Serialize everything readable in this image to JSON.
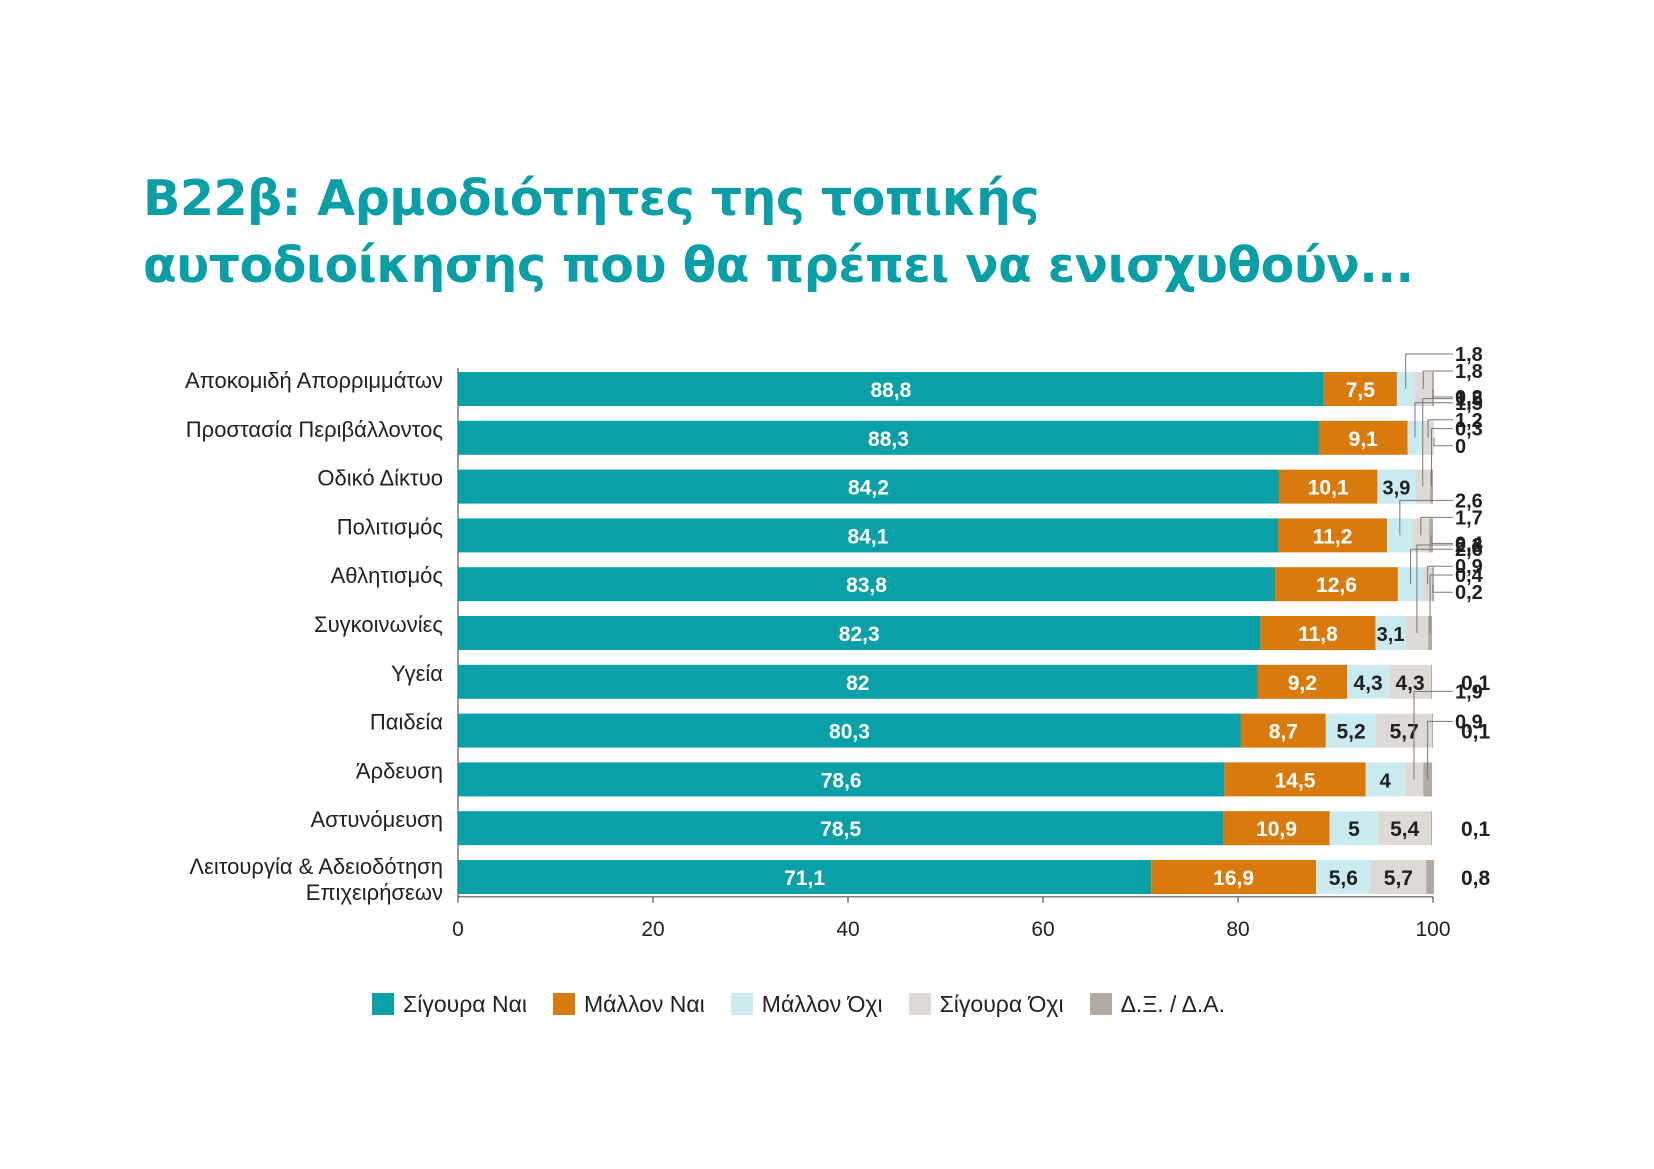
{
  "title": {
    "line1": "B22β: Αρμοδιότητες της τοπικής",
    "line2": "αυτοδιοίκησης που θα πρέπει να ενισχυθούν..."
  },
  "colors": {
    "accent_title": "#0a9ea6",
    "series": [
      "#0aa0a8",
      "#d97a0c",
      "#c9eaee",
      "#ddd9d5",
      "#b2aaa2"
    ]
  },
  "chart_data": {
    "type": "bar",
    "orientation": "horizontal",
    "stacked": true,
    "title": "B22β: Αρμοδιότητες της τοπικής αυτοδιοίκησης που θα πρέπει να ενισχυθούν...",
    "xlim": [
      0,
      100
    ],
    "xticks": [
      "0",
      "20",
      "40",
      "60",
      "80",
      "100"
    ],
    "grid": false,
    "legend_position": "bottom",
    "categories": [
      "Αποκομιδή Απορριμμάτων",
      "Προστασία Περιβάλλοντος",
      "Οδικό Δίκτυο",
      "Πολιτισμός",
      "Αθλητισμός",
      "Συγκοινωνίες",
      "Υγεία",
      "Παιδεία",
      "Άρδευση",
      "Αστυνόμευση",
      "Λειτουργία & Αδειοδότηση Επιχειρήσεων"
    ],
    "series": [
      {
        "name": "Σίγουρα Ναι",
        "values": [
          88.8,
          88.3,
          84.2,
          84.1,
          83.8,
          82.3,
          82,
          80.3,
          78.6,
          78.5,
          71.1
        ],
        "labels": [
          "88,8",
          "88,3",
          "84,2",
          "84,1",
          "83,8",
          "82,3",
          "82",
          "80,3",
          "78,6",
          "78,5",
          "71,1"
        ]
      },
      {
        "name": "Μάλλον Ναι",
        "values": [
          7.5,
          9.1,
          10.1,
          11.2,
          12.6,
          11.8,
          9.2,
          8.7,
          14.5,
          10.9,
          16.9
        ],
        "labels": [
          "7,5",
          "9,1",
          "10,1",
          "11,2",
          "12,6",
          "11,8",
          "9,2",
          "8,7",
          "14,5",
          "10,9",
          "16,9"
        ]
      },
      {
        "name": "Μάλλον Όχι",
        "values": [
          1.8,
          1.5,
          3.9,
          2.6,
          2.6,
          3.1,
          4.3,
          5.2,
          4,
          5,
          5.6
        ],
        "labels": [
          "1,8",
          "1,5",
          "3,9",
          "2,6",
          "2,6",
          "3,1",
          "4,3",
          "5,2",
          "4",
          "5",
          "5,6"
        ]
      },
      {
        "name": "Σίγουρα Όχι",
        "values": [
          1.8,
          1.2,
          1.5,
          1.7,
          0.9,
          2.3,
          4.3,
          5.7,
          1.9,
          5.4,
          5.7
        ],
        "labels": [
          "1,8",
          "1,2",
          "1,5",
          "1,7",
          "0,9",
          "2,3",
          "4,3",
          "5,7",
          "1,9",
          "5,4",
          "5,7"
        ]
      },
      {
        "name": "Δ.Ξ. / Δ.Α.",
        "values": [
          0.2,
          0,
          0.3,
          0.4,
          0.2,
          0.4,
          0.1,
          0.1,
          0.9,
          0.1,
          0.8
        ],
        "labels": [
          "0,2",
          "0",
          "0,3",
          "0,4",
          "0,2",
          "0,4",
          "0,1",
          "0,1",
          "0,9",
          "0,1",
          "0,8"
        ]
      }
    ]
  }
}
